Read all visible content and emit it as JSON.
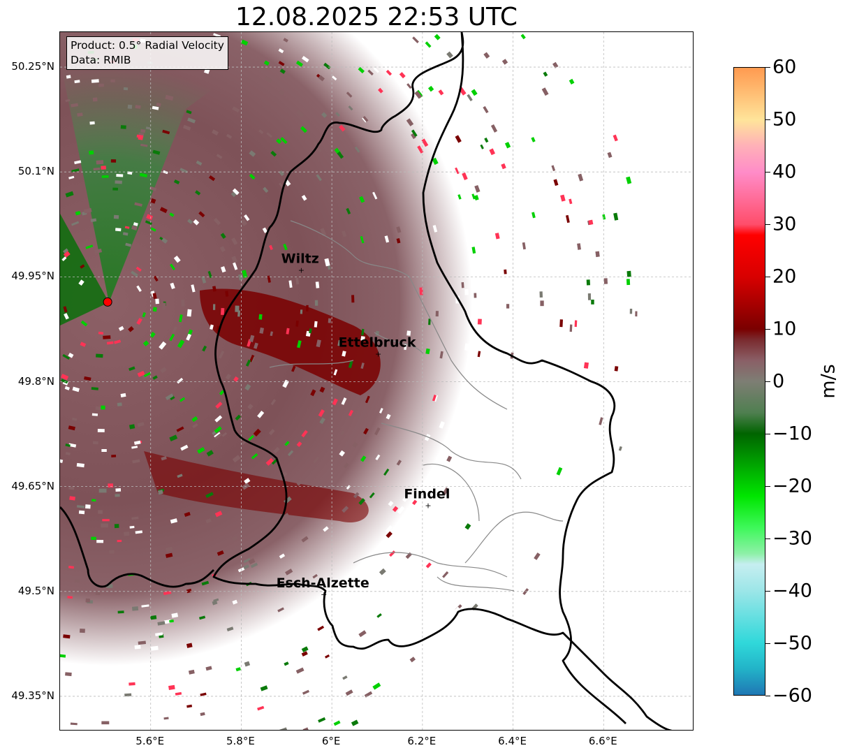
{
  "title": "12.08.2025 22:53 UTC",
  "info": {
    "product": "Product: 0.5° Radial Velocity",
    "data": "Data: RMIB"
  },
  "map": {
    "extent": {
      "lon_min": 5.4,
      "lon_max": 6.8,
      "lat_min": 49.3,
      "lat_max": 50.3
    },
    "radar_site": {
      "lon": 5.505,
      "lat": 49.914
    },
    "lat_ticks": [
      {
        "value": 50.25,
        "label": "50.25°N"
      },
      {
        "value": 50.1,
        "label": "50.1°N"
      },
      {
        "value": 49.95,
        "label": "49.95°N"
      },
      {
        "value": 49.8,
        "label": "49.8°N"
      },
      {
        "value": 49.65,
        "label": "49.65°N"
      },
      {
        "value": 49.5,
        "label": "49.5°N"
      },
      {
        "value": 49.35,
        "label": "49.35°N"
      }
    ],
    "lon_ticks": [
      {
        "value": 5.6,
        "label": "5.6°E"
      },
      {
        "value": 5.8,
        "label": "5.8°E"
      },
      {
        "value": 6.0,
        "label": "6°E"
      },
      {
        "value": 6.2,
        "label": "6.2°E"
      },
      {
        "value": 6.4,
        "label": "6.4°E"
      },
      {
        "value": 6.6,
        "label": "6.6°E"
      }
    ],
    "cities": [
      {
        "name": "Wiltz",
        "lon": 5.93,
        "lat": 49.96
      },
      {
        "name": "Ettelbruck",
        "lon": 6.1,
        "lat": 49.84
      },
      {
        "name": "Findel",
        "lon": 6.21,
        "lat": 49.623
      },
      {
        "name": "Esch-Alzette",
        "lon": 5.98,
        "lat": 49.496
      }
    ],
    "colors": {
      "border": "#000000",
      "canton_lines": "#888888",
      "receding_dark": "#7a0000",
      "receding_muted": "#866064",
      "approaching": "#0a7a0a",
      "radar_marker": "#ff0000"
    }
  },
  "colorbar": {
    "unit": "m/s",
    "min": -60,
    "max": 60,
    "ticks": [
      {
        "value": 60,
        "label": "60"
      },
      {
        "value": 50,
        "label": "50"
      },
      {
        "value": 40,
        "label": "40"
      },
      {
        "value": 30,
        "label": "30"
      },
      {
        "value": 20,
        "label": "20"
      },
      {
        "value": 10,
        "label": "10"
      },
      {
        "value": 0,
        "label": "0"
      },
      {
        "value": -10,
        "label": "−10"
      },
      {
        "value": -20,
        "label": "−20"
      },
      {
        "value": -30,
        "label": "−30"
      },
      {
        "value": -40,
        "label": "−40"
      },
      {
        "value": -50,
        "label": "−50"
      },
      {
        "value": -60,
        "label": "−60"
      }
    ],
    "stops": [
      {
        "value": -60,
        "color": "#1f77b4"
      },
      {
        "value": -55,
        "color": "#22b3c8"
      },
      {
        "value": -50,
        "color": "#30d8da"
      },
      {
        "value": -40,
        "color": "#9de6e8"
      },
      {
        "value": -35,
        "color": "#c6eef0"
      },
      {
        "value": -33,
        "color": "#8ef0a8"
      },
      {
        "value": -28,
        "color": "#3ef85a"
      },
      {
        "value": -22,
        "color": "#00e600"
      },
      {
        "value": -10,
        "color": "#006400"
      },
      {
        "value": -6,
        "color": "#4f7f50"
      },
      {
        "value": 0,
        "color": "#7e7e74"
      },
      {
        "value": 4,
        "color": "#8a5f66"
      },
      {
        "value": 8,
        "color": "#7a2a2e"
      },
      {
        "value": 10,
        "color": "#7a0000"
      },
      {
        "value": 20,
        "color": "#d80000"
      },
      {
        "value": 28,
        "color": "#ff0000"
      },
      {
        "value": 30,
        "color": "#ff4d6a"
      },
      {
        "value": 40,
        "color": "#ff8cc8"
      },
      {
        "value": 45,
        "color": "#ffb0b8"
      },
      {
        "value": 50,
        "color": "#ffe49a"
      },
      {
        "value": 60,
        "color": "#ff9a50"
      }
    ]
  }
}
